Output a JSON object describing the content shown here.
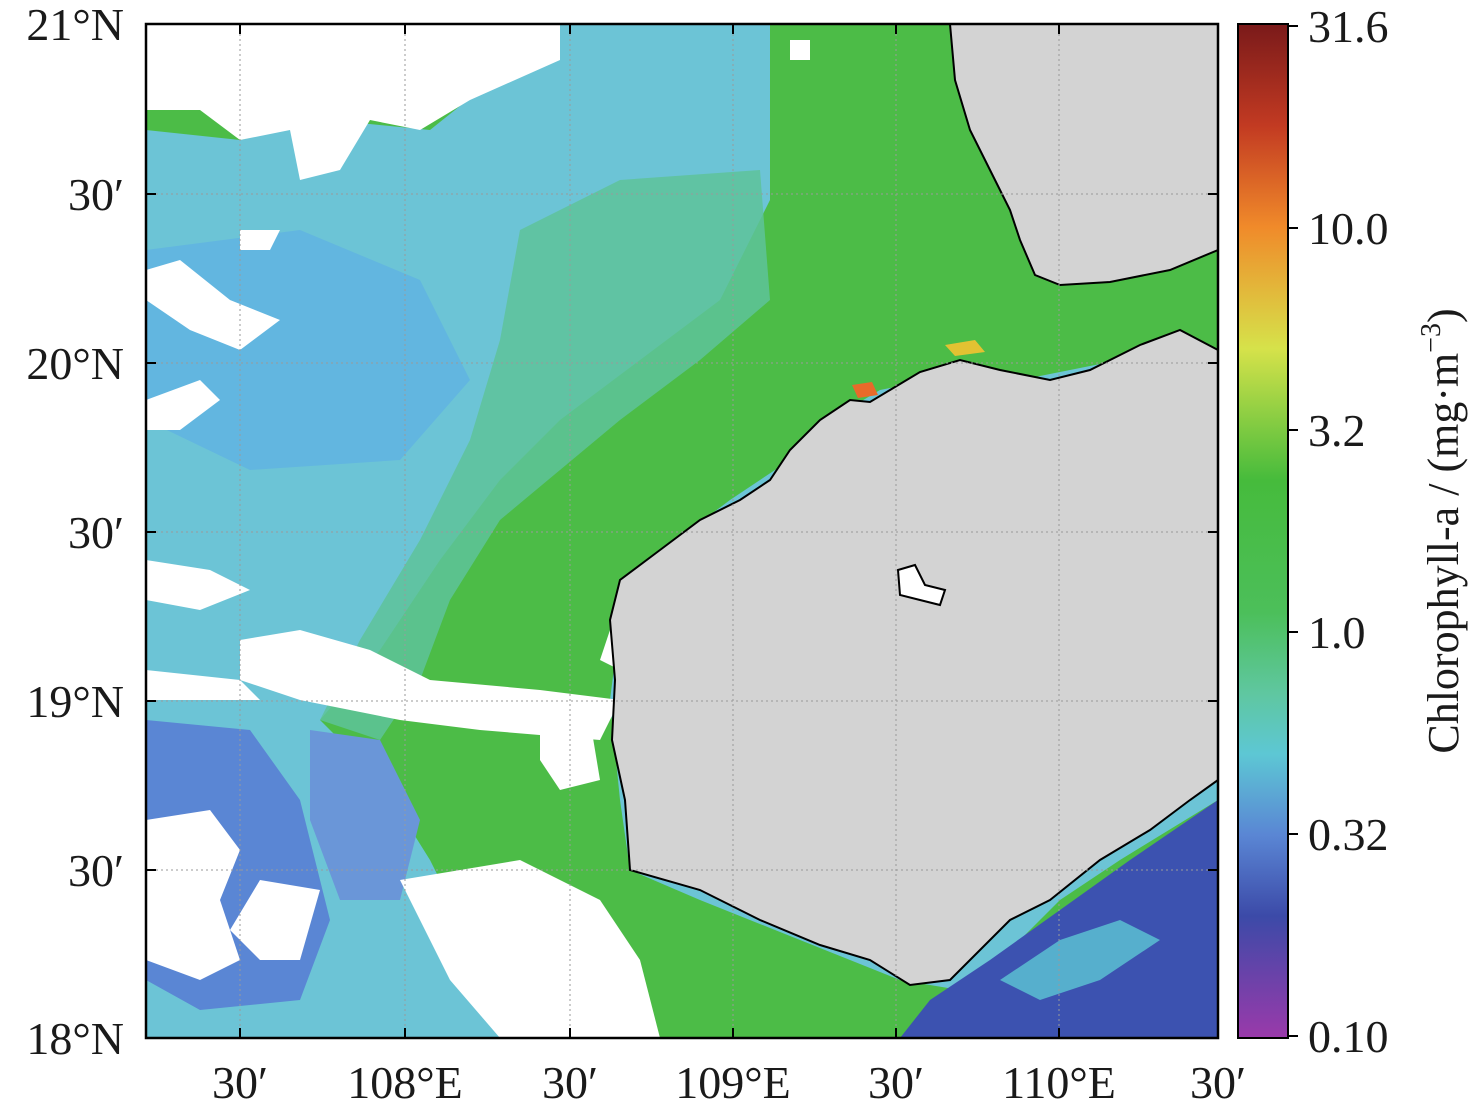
{
  "map": {
    "lat_labels": [
      "21°N",
      "30′",
      "20°N",
      "30′",
      "19°N",
      "30′",
      "18°N"
    ],
    "lon_labels": [
      "30′",
      "108°E",
      "30′",
      "109°E",
      "30′",
      "110°E",
      "30′"
    ],
    "colors": {
      "land": "#d3d3d3",
      "no_data": "#ffffff",
      "coastline": "#000000",
      "grid": "#9a9a9a"
    }
  },
  "colorbar": {
    "label": "Chlorophyll-a / (mg·m",
    "label_exponent": "−3",
    "label_close": ")",
    "scale": "log",
    "ticks": [
      "31.6",
      "10.0",
      "3.2",
      "1.0",
      "0.32",
      "0.10"
    ],
    "colormap": [
      "#7a1a1a",
      "#c23a22",
      "#f08a2a",
      "#d6e24a",
      "#46bb3c",
      "#5fc7a0",
      "#5dc7d4",
      "#5a86d4",
      "#3c4aa8",
      "#9a3aaa"
    ]
  }
}
